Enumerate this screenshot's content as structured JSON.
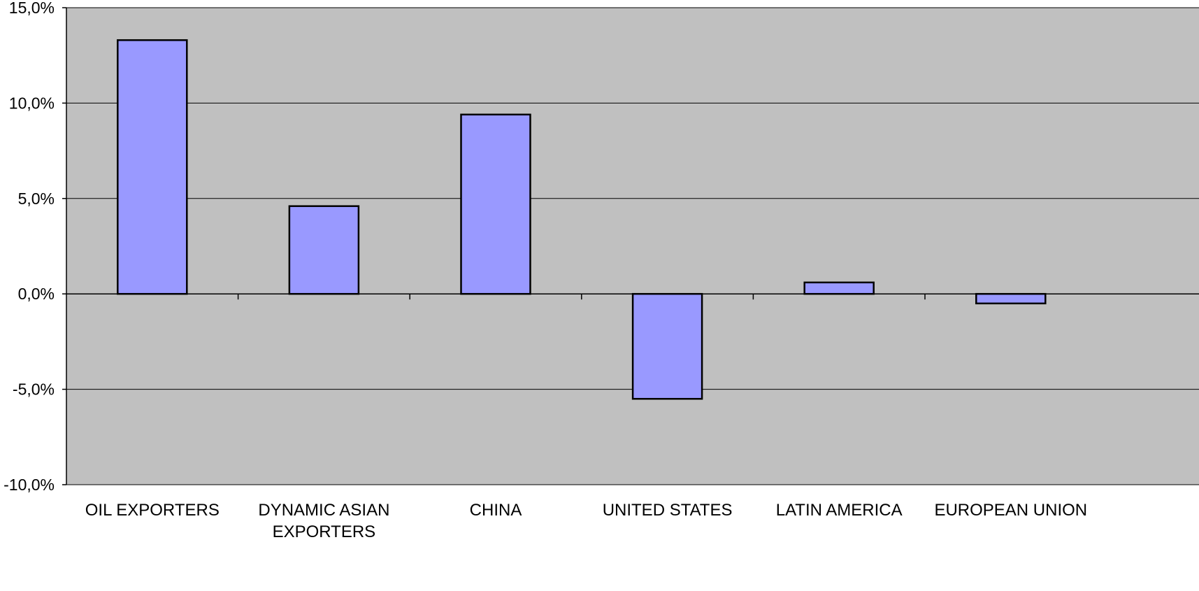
{
  "chart_data": {
    "type": "bar",
    "title": "",
    "xlabel": "",
    "ylabel": "",
    "categories": [
      [
        "OIL EXPORTERS"
      ],
      [
        "DYNAMIC ASIAN",
        "EXPORTERS"
      ],
      [
        "CHINA"
      ],
      [
        "UNITED STATES"
      ],
      [
        "LATIN AMERICA"
      ],
      [
        "EUROPEAN UNION"
      ]
    ],
    "values": [
      13.3,
      4.6,
      9.4,
      -5.5,
      0.6,
      -0.5
    ],
    "ylim": [
      -10,
      15
    ],
    "yticks": [
      15,
      10,
      5,
      0,
      -5,
      -10
    ],
    "ytick_labels": [
      "15,0%",
      "10,0%",
      "5,0%",
      "0,0%",
      "-5,0%",
      "-10,0%"
    ],
    "grid": true,
    "legend": "none",
    "colors": {
      "plot_background": "#c0c0c0",
      "bar_fill": "#9999ff",
      "bar_stroke": "#000000",
      "gridline": "#000000",
      "axis": "#000000"
    }
  }
}
